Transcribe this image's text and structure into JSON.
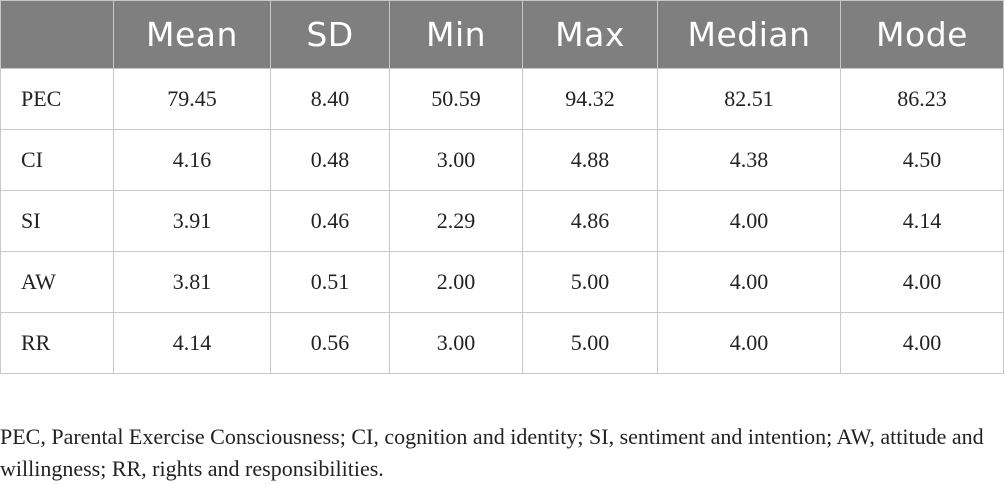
{
  "table": {
    "headers": [
      "",
      "Mean",
      "SD",
      "Min",
      "Max",
      "Median",
      "Mode"
    ],
    "rows": [
      {
        "label": "PEC",
        "values": [
          "79.45",
          "8.40",
          "50.59",
          "94.32",
          "82.51",
          "86.23"
        ]
      },
      {
        "label": "CI",
        "values": [
          "4.16",
          "0.48",
          "3.00",
          "4.88",
          "4.38",
          "4.50"
        ]
      },
      {
        "label": "SI",
        "values": [
          "3.91",
          "0.46",
          "2.29",
          "4.86",
          "4.00",
          "4.14"
        ]
      },
      {
        "label": "AW",
        "values": [
          "3.81",
          "0.51",
          "2.00",
          "5.00",
          "4.00",
          "4.00"
        ]
      },
      {
        "label": "RR",
        "values": [
          "4.14",
          "0.56",
          "3.00",
          "5.00",
          "4.00",
          "4.00"
        ]
      }
    ]
  },
  "footnote": "PEC, Parental Exercise Consciousness; CI, cognition and identity; SI, sentiment and intention; AW, attitude and willingness; RR, rights and responsibilities.",
  "colors": {
    "header_bg": "#7f7f7f",
    "header_text": "#ffffff",
    "grid": "#c8c8c8"
  }
}
